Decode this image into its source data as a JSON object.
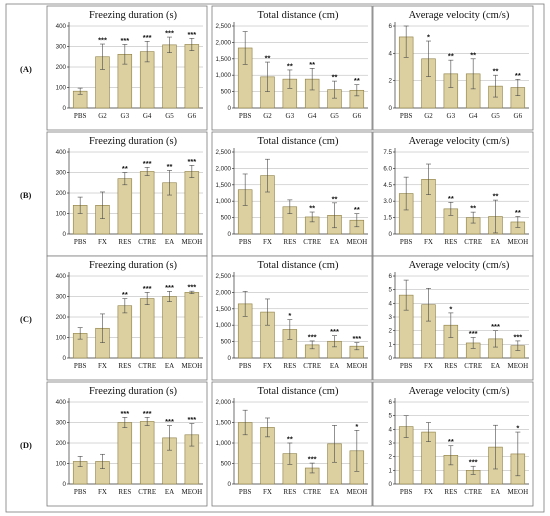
{
  "chart_data": [
    {
      "row": "(A)",
      "type": "bar",
      "title": "Freezing duration (s)",
      "categories": [
        "PBS",
        "G2",
        "G3",
        "G4",
        "G5",
        "G6"
      ],
      "values": [
        82,
        250,
        262,
        275,
        308,
        310
      ],
      "errors": [
        15,
        62,
        48,
        50,
        38,
        30
      ],
      "significance": [
        "",
        "***",
        "***",
        "***",
        "***",
        "***"
      ],
      "ylim": [
        0,
        400
      ],
      "yticks": [
        "0",
        "100",
        "200",
        "300",
        "400"
      ],
      "grid": true,
      "xlabel": "",
      "ylabel": ""
    },
    {
      "row": "(A)",
      "type": "bar",
      "title": "Total distance (cm)",
      "categories": [
        "PBS",
        "G2",
        "G3",
        "G4",
        "G5",
        "G6"
      ],
      "values": [
        1830,
        950,
        880,
        880,
        560,
        540
      ],
      "errors": [
        500,
        450,
        280,
        330,
        260,
        170
      ],
      "significance": [
        "",
        "**",
        "**",
        "**",
        "**",
        "**"
      ],
      "ylim": [
        0,
        2500
      ],
      "yticks": [
        "0",
        "500",
        "1,000",
        "1,500",
        "2,000",
        "2,500"
      ],
      "grid": true,
      "xlabel": "",
      "ylabel": ""
    },
    {
      "row": "(A)",
      "type": "bar",
      "title": "Average velocity (cm/s)",
      "categories": [
        "PBS",
        "G2",
        "G3",
        "G4",
        "G5",
        "G6"
      ],
      "values": [
        5.2,
        3.6,
        2.5,
        2.5,
        1.6,
        1.5
      ],
      "errors": [
        1.5,
        1.3,
        1.0,
        1.1,
        0.8,
        0.6
      ],
      "significance": [
        "",
        "*",
        "**",
        "**",
        "**",
        "**"
      ],
      "ylim": [
        0,
        6
      ],
      "yticks": [
        "0",
        "2",
        "4",
        "6"
      ],
      "grid": true,
      "xlabel": "",
      "ylabel": ""
    },
    {
      "row": "(B)",
      "type": "bar",
      "title": "Freezing duration (s)",
      "categories": [
        "PBS",
        "FX",
        "RES",
        "CTRE",
        "EA",
        "MEOH"
      ],
      "values": [
        140,
        140,
        270,
        305,
        250,
        305
      ],
      "errors": [
        40,
        65,
        30,
        20,
        60,
        30
      ],
      "significance": [
        "",
        "",
        "**",
        "***",
        "**",
        "***"
      ],
      "ylim": [
        0,
        400
      ],
      "yticks": [
        "0",
        "100",
        "200",
        "300",
        "400"
      ],
      "grid": true,
      "xlabel": "",
      "ylabel": ""
    },
    {
      "row": "(B)",
      "type": "bar",
      "title": "Total distance (cm)",
      "categories": [
        "PBS",
        "FX",
        "RES",
        "CTRE",
        "EA",
        "MEOH"
      ],
      "values": [
        1350,
        1780,
        830,
        520,
        570,
        420
      ],
      "errors": [
        480,
        500,
        210,
        150,
        380,
        200
      ],
      "significance": [
        "",
        "",
        "",
        "**",
        "**",
        "**"
      ],
      "ylim": [
        0,
        2500
      ],
      "yticks": [
        "0",
        "500",
        "1,000",
        "1,500",
        "2,000",
        "2,500"
      ],
      "grid": true,
      "xlabel": "",
      "ylabel": ""
    },
    {
      "row": "(B)",
      "type": "bar",
      "title": "Average velocity (cm/s)",
      "categories": [
        "PBS",
        "FX",
        "RES",
        "CTRE",
        "EA",
        "MEOH"
      ],
      "values": [
        3.7,
        5.0,
        2.3,
        1.5,
        1.6,
        1.1
      ],
      "errors": [
        1.5,
        1.4,
        0.6,
        0.5,
        1.5,
        0.5
      ],
      "significance": [
        "",
        "",
        "**",
        "**",
        "**",
        "**"
      ],
      "ylim": [
        0,
        7.5
      ],
      "yticks": [
        "0",
        "1.5",
        "3.0",
        "4.5",
        "6.0",
        "7.5"
      ],
      "grid": true,
      "xlabel": "",
      "ylabel": ""
    },
    {
      "row": "(C)",
      "type": "bar",
      "title": "Freezing duration (s)",
      "categories": [
        "PBS",
        "FX",
        "RES",
        "CTRE",
        "EA",
        "MEOH"
      ],
      "values": [
        120,
        145,
        255,
        290,
        300,
        320
      ],
      "errors": [
        28,
        70,
        35,
        30,
        25,
        6
      ],
      "significance": [
        "",
        "",
        "**",
        "***",
        "***",
        "***"
      ],
      "ylim": [
        0,
        400
      ],
      "yticks": [
        "0",
        "100",
        "200",
        "300",
        "400"
      ],
      "grid": true,
      "xlabel": "",
      "ylabel": ""
    },
    {
      "row": "(C)",
      "type": "bar",
      "title": "Total distance (cm)",
      "categories": [
        "PBS",
        "FX",
        "RES",
        "CTRE",
        "EA",
        "MEOH"
      ],
      "values": [
        1650,
        1400,
        870,
        400,
        510,
        360
      ],
      "errors": [
        380,
        400,
        300,
        120,
        170,
        110
      ],
      "significance": [
        "",
        "",
        "*",
        "***",
        "***",
        "***"
      ],
      "ylim": [
        0,
        2500
      ],
      "yticks": [
        "0",
        "500",
        "1,000",
        "1,500",
        "2,000",
        "2,500"
      ],
      "grid": true,
      "xlabel": "",
      "ylabel": ""
    },
    {
      "row": "(C)",
      "type": "bar",
      "title": "Average velocity (cm/s)",
      "categories": [
        "PBS",
        "FX",
        "RES",
        "CTRE",
        "EA",
        "MEOH"
      ],
      "values": [
        4.6,
        3.9,
        2.4,
        1.1,
        1.4,
        0.9
      ],
      "errors": [
        1.1,
        1.2,
        0.9,
        0.4,
        0.6,
        0.35
      ],
      "significance": [
        "",
        "",
        "*",
        "***",
        "***",
        "***"
      ],
      "ylim": [
        0,
        6
      ],
      "yticks": [
        "0",
        "1",
        "2",
        "3",
        "4",
        "5",
        "6"
      ],
      "grid": true,
      "xlabel": "",
      "ylabel": ""
    },
    {
      "row": "(D)",
      "type": "bar",
      "title": "Freezing duration (s)",
      "categories": [
        "PBS",
        "FX",
        "RES",
        "CTRE",
        "EA",
        "MEOH"
      ],
      "values": [
        110,
        110,
        300,
        305,
        225,
        240
      ],
      "errors": [
        25,
        35,
        25,
        20,
        60,
        55
      ],
      "significance": [
        "",
        "",
        "***",
        "***",
        "***",
        "***"
      ],
      "ylim": [
        0,
        400
      ],
      "yticks": [
        "0",
        "100",
        "200",
        "300",
        "400"
      ],
      "grid": true,
      "xlabel": "",
      "ylabel": ""
    },
    {
      "row": "(D)",
      "type": "bar",
      "title": "Total distance (cm)",
      "categories": [
        "PBS",
        "FX",
        "RES",
        "CTRE",
        "EA",
        "MEOH"
      ],
      "values": [
        1500,
        1380,
        740,
        390,
        980,
        810
      ],
      "errors": [
        300,
        230,
        260,
        120,
        450,
        500
      ],
      "significance": [
        "",
        "",
        "**",
        "***",
        "",
        "*"
      ],
      "ylim": [
        0,
        2000
      ],
      "yticks": [
        "0",
        "500",
        "1,000",
        "1,500",
        "2,000"
      ],
      "grid": true,
      "xlabel": "",
      "ylabel": ""
    },
    {
      "row": "(D)",
      "type": "bar",
      "title": "Average velocity (cm/s)",
      "categories": [
        "PBS",
        "FX",
        "RES",
        "CTRE",
        "EA",
        "MEOH"
      ],
      "values": [
        4.2,
        3.8,
        2.1,
        1.0,
        2.7,
        2.2
      ],
      "errors": [
        0.8,
        0.7,
        0.7,
        0.3,
        1.6,
        1.6
      ],
      "significance": [
        "",
        "",
        "**",
        "***",
        "",
        "*"
      ],
      "ylim": [
        0,
        6
      ],
      "yticks": [
        "0",
        "1",
        "2",
        "3",
        "4",
        "5",
        "6"
      ],
      "grid": true,
      "xlabel": "",
      "ylabel": ""
    }
  ],
  "row_labels": [
    "(A)",
    "(B)",
    "(C)",
    "(D)"
  ],
  "colors": {
    "bar_fill": "#dcd0a0",
    "bar_stroke": "#8c7d42",
    "error_bar": "#4a4a4a",
    "frame": "#7a7a7a"
  }
}
